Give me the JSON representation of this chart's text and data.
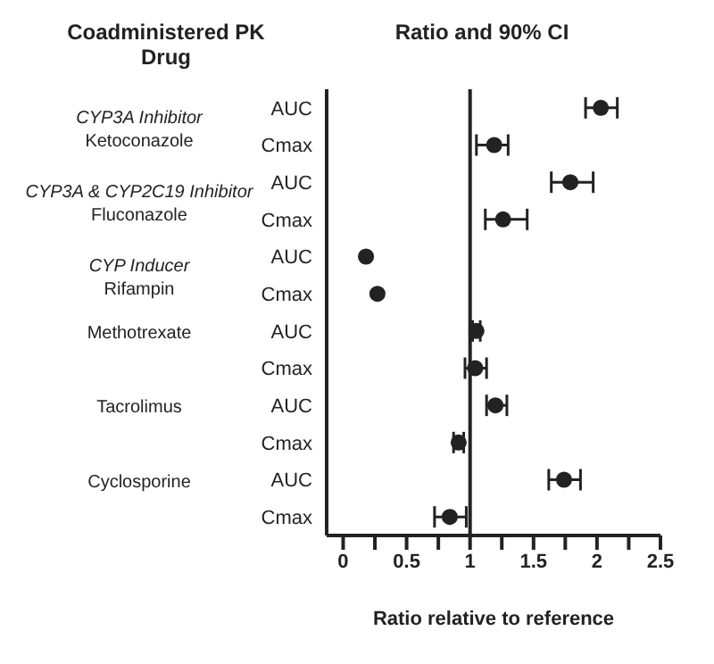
{
  "chart_data": {
    "type": "scatter",
    "orientation": "horizontal",
    "title": "Ratio and 90% CI",
    "xlabel": "Ratio relative to reference",
    "categories": [
      "AUC",
      "Cmax",
      "AUC",
      "Cmax",
      "AUC",
      "Cmax",
      "AUC",
      "Cmax",
      "AUC",
      "Cmax",
      "AUC",
      "Cmax"
    ],
    "series": [
      {
        "color": "#222222",
        "values": [
          2.03,
          1.19,
          1.79,
          1.26,
          0.18,
          0.27,
          1.05,
          1.04,
          1.2,
          0.91,
          1.74,
          0.84
        ],
        "errors": [
          [
            1.91,
            2.16
          ],
          [
            1.05,
            1.3
          ],
          [
            1.64,
            1.97
          ],
          [
            1.12,
            1.45
          ],
          null,
          null,
          [
            1.02,
            1.08
          ],
          [
            0.96,
            1.13
          ],
          [
            1.13,
            1.29
          ],
          [
            0.87,
            0.95
          ],
          [
            1.62,
            1.87
          ],
          [
            0.72,
            0.97
          ]
        ]
      }
    ],
    "xlim": [
      -0.13,
      2.5
    ],
    "xticks": [
      0,
      {
        "value": 0.25,
        "label": null
      },
      0.5,
      {
        "value": 0.75,
        "label": null
      },
      1,
      {
        "value": 1.25,
        "label": null
      },
      1.5,
      {
        "value": 1.75,
        "label": null
      },
      2,
      {
        "value": 2.25,
        "label": null
      },
      2.5
    ],
    "ref_lines": [
      {
        "axis": "x",
        "value": 1,
        "color": "#222222"
      }
    ],
    "annotations": [
      "Coadministered PK\nDrug",
      "CYP3A Inhibitor\nKetoconazole",
      "CYP3A & CYP2C19 Inhibitor\nFluconazole",
      "CYP Inducer\nRifampin",
      "Methotrexate",
      "Tacrolimus",
      "Cyclosporine"
    ],
    "marker": "circle",
    "grid": false,
    "legend": false
  }
}
